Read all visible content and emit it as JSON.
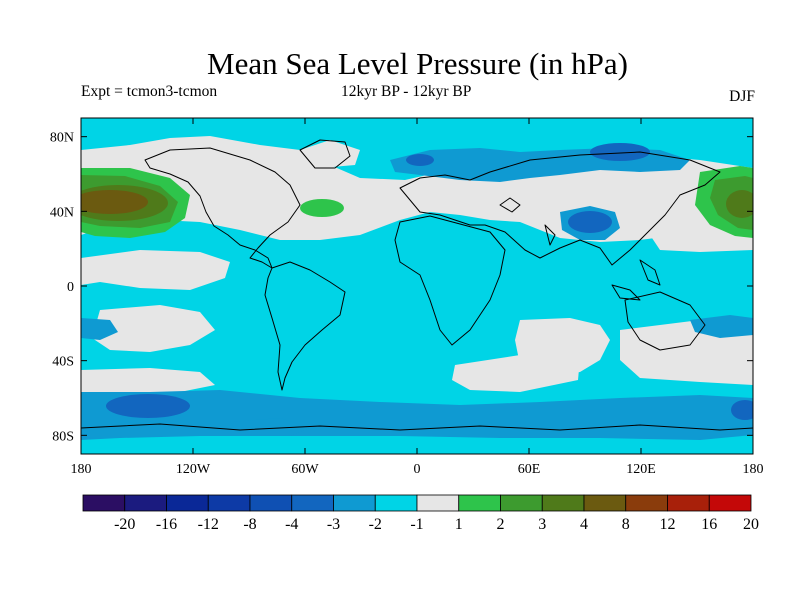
{
  "figure": {
    "title": "Mean Sea Level Pressure (in hPa)",
    "experiment": "Expt = tcmon3-tcmon",
    "period": "12kyr BP - 12kyr BP",
    "season": "DJF"
  },
  "map": {
    "projection": "cylindrical equidistant",
    "lon_range": [
      -180,
      180
    ],
    "lat_range": [
      -90,
      90
    ],
    "x_tick_labels": [
      "180",
      "120W",
      "60W",
      "0",
      "60E",
      "120E",
      "180"
    ],
    "x_tick_values": [
      -180,
      -120,
      -60,
      0,
      60,
      120,
      180
    ],
    "y_tick_labels": [
      "80N",
      "40N",
      "0",
      "40S",
      "80S"
    ],
    "y_tick_values": [
      80,
      40,
      0,
      -40,
      -80
    ]
  },
  "colorbar": {
    "labels": [
      "-20",
      "-16",
      "-12",
      "-8",
      "-4",
      "-3",
      "-2",
      "-1",
      "1",
      "2",
      "3",
      "4",
      "8",
      "12",
      "16",
      "20"
    ],
    "colors": [
      "#2b0e63",
      "#1b1b7f",
      "#0a2897",
      "#0d3aa6",
      "#0f50b3",
      "#1266bf",
      "#0f9ad2",
      "#00d4e6",
      "#e6e6e6",
      "#2ec44b",
      "#3d9b2f",
      "#4f7a1a",
      "#6b5a10",
      "#8a3c0c",
      "#a8200a",
      "#c40808"
    ]
  }
}
